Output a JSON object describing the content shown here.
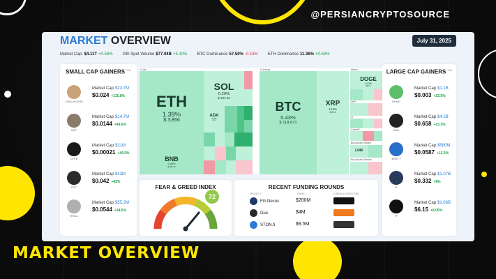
{
  "watermark": "@PERSIANCRYPTOSOURCE",
  "bottom_title": "MARKET OVERVIEW",
  "header": {
    "title_part1": "MARKET",
    "title_part2": "OVERVIEW",
    "date": "July 31, 2025"
  },
  "stats": [
    {
      "label": "Market Cap:",
      "value": "$4.11T",
      "change": "+0.58%",
      "dir": "up"
    },
    {
      "label": "24h Spot Volume",
      "value": "$77.04B",
      "change": "+5.10%",
      "dir": "up"
    },
    {
      "label": "BTC Dominance",
      "value": "57.50%",
      "change": "-0.16%",
      "dir": "down"
    },
    {
      "label": "ETH Dominance",
      "value": "11.36%",
      "change": "+0.69%",
      "dir": "up"
    }
  ],
  "small_cap": {
    "title": "SMALL CAP GAINERS",
    "badge": "24h",
    "coins": [
      {
        "sym": "CHILLHOUSE",
        "mc_label": "Market Cap",
        "mc": "$23.7M",
        "price": "$0.024",
        "change": "+115.8%",
        "icon": "dog-icon",
        "color": "#c9a27a"
      },
      {
        "sym": "NKT",
        "mc_label": "Market Cap",
        "mc": "$14.7M",
        "price": "$0.0144",
        "change": "+49.6%",
        "icon": "cartoon-icon",
        "color": "#8a7b6a"
      },
      {
        "sym": "OFFB",
        "mc_label": "Market Cap",
        "mc": "$21M",
        "price": "$0.00021",
        "change": "+49.5%",
        "icon": "sunglasses-icon",
        "color": "#1a1a1a"
      },
      {
        "sym": "FCT",
        "mc_label": "Market Cap",
        "mc": "$43M",
        "price": "$0.042",
        "change": "+42%",
        "icon": "face-icon",
        "color": "#2b2b2b"
      },
      {
        "sym": "TROLL",
        "mc_label": "Market Cap",
        "mc": "$55.2M",
        "price": "$0.0544",
        "change": "+34.6%",
        "icon": "troll-icon",
        "color": "#b0b0b0"
      }
    ]
  },
  "large_cap": {
    "title": "LARGE CAP GAINERS",
    "badge": "24h",
    "coins": [
      {
        "sym": "PUMP",
        "mc_label": "Market Cap",
        "mc": "$1.1B",
        "price": "$0.003",
        "change": "+23.5%",
        "icon": "pill-icon",
        "color": "#5dbf6a"
      },
      {
        "sym": "ENA",
        "mc_label": "Market Cap",
        "mc": "$4.2B",
        "price": "$0.658",
        "change": "+13.3%",
        "icon": "ena-icon",
        "color": "#222"
      },
      {
        "sym": "BRETT",
        "mc_label": "Market Cap",
        "mc": "$580M",
        "price": "$0.0587",
        "change": "+12.3%",
        "icon": "brett-icon",
        "color": "#2a6fc9"
      },
      {
        "sym": "S",
        "mc_label": "Market Cap",
        "mc": "$1.07B",
        "price": "$0.332",
        "change": "+9%",
        "icon": "sonic-icon",
        "color": "#2a3a5a"
      },
      {
        "sym": "IP",
        "mc_label": "Market Cap",
        "mc": "$1.66B",
        "price": "$6.15",
        "change": "+8.05%",
        "icon": "story-icon",
        "color": "#111"
      }
    ]
  },
  "heatmap": {
    "group_left": "Chain",
    "group_mid": "Currency",
    "group_right": "Meme",
    "tiles": {
      "eth": {
        "name": "ETH",
        "pct": "1.39%",
        "price": "$ 3,866"
      },
      "bnb": {
        "name": "BNB",
        "pct": "0.46%",
        "price": "$ 803.76"
      },
      "sol": {
        "name": "SOL",
        "pct": "0.29%",
        "price": "$ 181.22"
      },
      "ada": {
        "name": "ADA",
        "pct": "0.60%",
        "price": "$0.78"
      },
      "btc": {
        "name": "BTC",
        "pct": "0.43%",
        "price": "$ 118,671"
      },
      "xrp": {
        "name": "XRP",
        "pct": "1.15%",
        "price": "$ 3.13"
      },
      "doge": {
        "name": "DOGE",
        "pct": "0.63%",
        "price": "$0.22"
      },
      "link": {
        "name": "LINK",
        "pct": "",
        "price": ""
      },
      "defi": "DeFi",
      "ai": "AI",
      "gamefi": "GameFi",
      "bi": "Blockchain Infrastr.",
      "bs": "Blockchain Service"
    }
  },
  "fear_greed": {
    "title": "FEAR & GREED INDEX",
    "value": "72",
    "score": 72
  },
  "funding": {
    "title": "RECENT FUNDING ROUNDS",
    "col_project": "PROJECT",
    "col_raise": "RAISE",
    "col_investors": "FUNDS & INVESTORS",
    "rows": [
      {
        "project": "FG Nexus",
        "raise": "$200M",
        "icon": "fg-nexus-icon",
        "inv": "investor-logo",
        "color": "#1e3a6a",
        "inv_color": "#111"
      },
      {
        "project": "Due",
        "raise": "$4M",
        "icon": "due-icon",
        "inv": "investor-logo",
        "color": "#2a2a2a",
        "inv_color": "#f07a1e"
      },
      {
        "project": "STON.fi",
        "raise": "$9.5M",
        "icon": "ston-fi-icon",
        "inv": "investor-logo",
        "color": "#2b7bd3",
        "inv_color": "#333"
      }
    ]
  }
}
